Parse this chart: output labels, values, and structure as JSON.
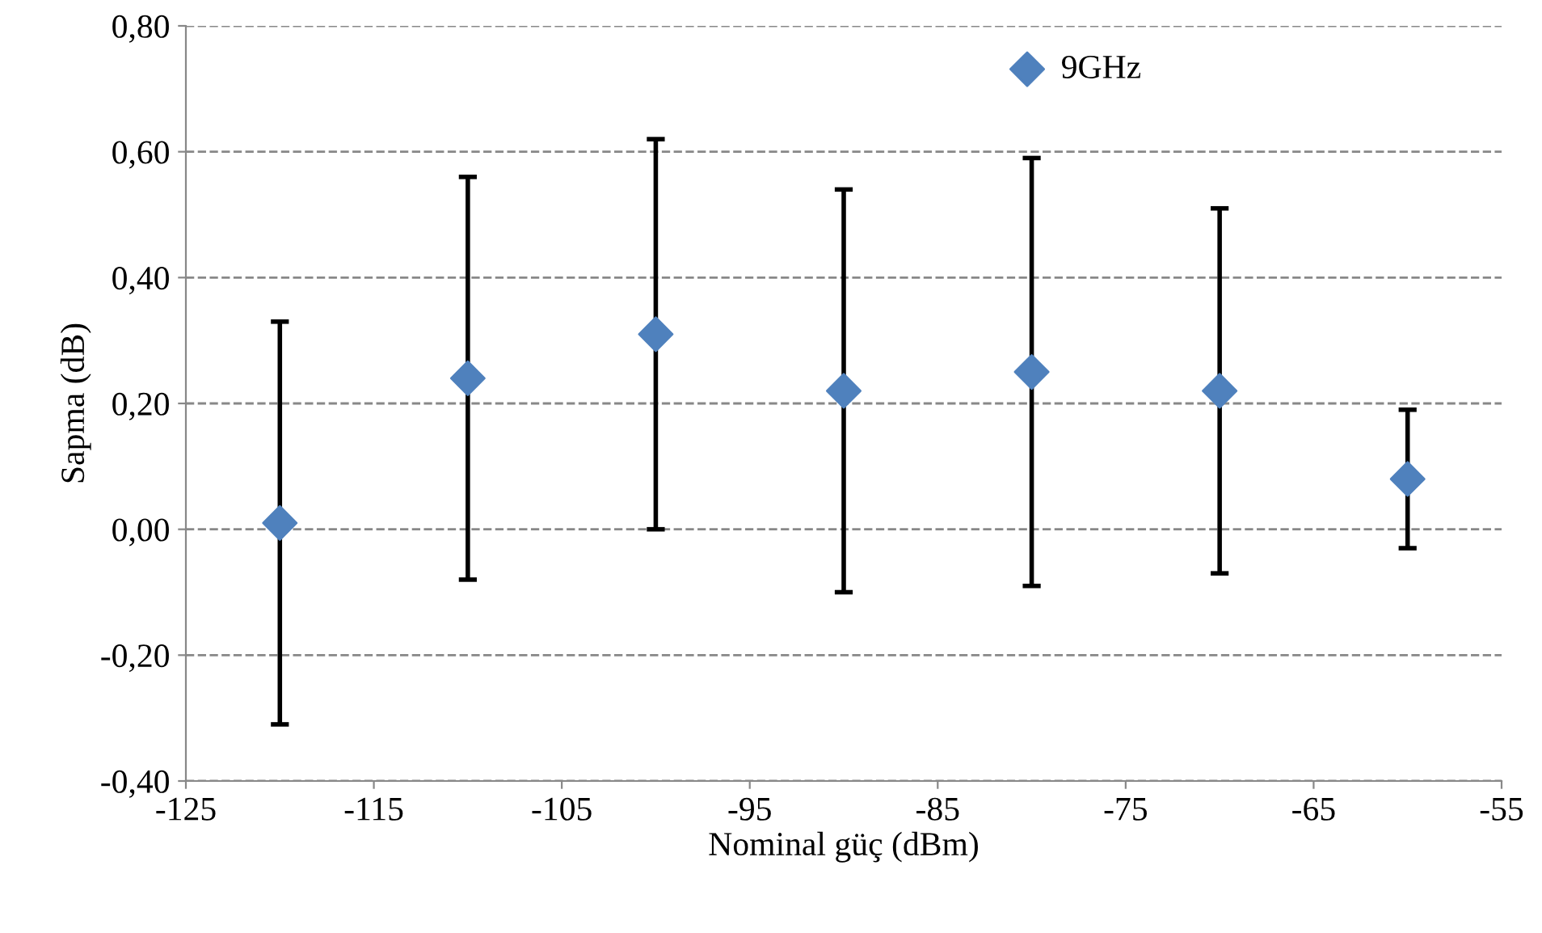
{
  "chart_data": {
    "type": "scatter",
    "xlabel": "Nominal güç (dBm)",
    "ylabel": "Sapma (dB)",
    "x": [
      -120,
      -110,
      -100,
      -90,
      -80,
      -70,
      -60
    ],
    "series": [
      {
        "name": "9GHz",
        "color": "#4f81bd",
        "values": [
          0.01,
          0.24,
          0.31,
          0.22,
          0.25,
          0.22,
          0.08
        ],
        "errors": [
          0.32,
          0.32,
          0.31,
          0.32,
          0.34,
          0.29,
          0.11
        ]
      }
    ],
    "xlim": [
      -125,
      -55
    ],
    "xticks": [
      -125,
      -115,
      -105,
      -95,
      -85,
      -75,
      -65,
      -55
    ],
    "ylim": [
      -0.4,
      0.8
    ],
    "yticks": [
      {
        "value": -0.4,
        "label": "-0,40"
      },
      {
        "value": -0.2,
        "label": "-0,20"
      },
      {
        "value": 0,
        "label": "0,00"
      },
      {
        "value": 0.2,
        "label": "0,20"
      },
      {
        "value": 0.4,
        "label": "0,40"
      },
      {
        "value": 0.6,
        "label": "0,60"
      },
      {
        "value": 0.8,
        "label": "0,80"
      }
    ],
    "grid": "y",
    "legend": "top",
    "marker": "diamond"
  }
}
